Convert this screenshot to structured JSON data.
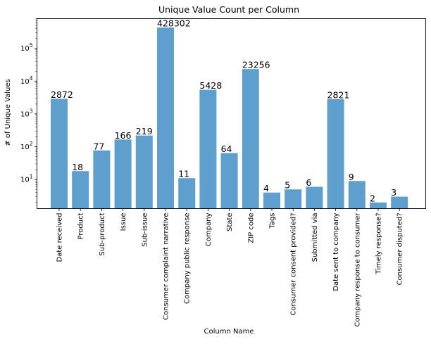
{
  "chart_data": {
    "type": "bar",
    "title": "Unique Value Count per Column",
    "xlabel": "Column Name",
    "ylabel": "# of Unique Values",
    "yscale": "log",
    "ylim": [
      1.3,
      800000
    ],
    "ytick_values": [
      10,
      100,
      1000,
      10000,
      100000
    ],
    "ytick_labels": [
      {
        "base": "10",
        "exp": "1"
      },
      {
        "base": "10",
        "exp": "2"
      },
      {
        "base": "10",
        "exp": "3"
      },
      {
        "base": "10",
        "exp": "4"
      },
      {
        "base": "10",
        "exp": "5"
      }
    ],
    "grid": false,
    "legend": "none",
    "bar_color": "#5f9fcd",
    "categories": [
      "Date received",
      "Product",
      "Sub-product",
      "Issue",
      "Sub-issue",
      "Consumer complaint narrative",
      "Company public response",
      "Company",
      "State",
      "ZIP code",
      "Tags",
      "Consumer consent provided?",
      "Submitted via",
      "Date sent to company",
      "Company response to consumer",
      "Timely response?",
      "Consumer disputed?"
    ],
    "values": [
      2872,
      18,
      77,
      166,
      219,
      428302,
      11,
      5428,
      64,
      23256,
      4,
      5,
      6,
      2821,
      9,
      2,
      3
    ],
    "data_labels": [
      "2872",
      "18",
      "77",
      "166",
      "219",
      "428302",
      "11",
      "5428",
      "64",
      "23256",
      "4",
      "5",
      "6",
      "2821",
      "9",
      "2",
      "3"
    ]
  }
}
